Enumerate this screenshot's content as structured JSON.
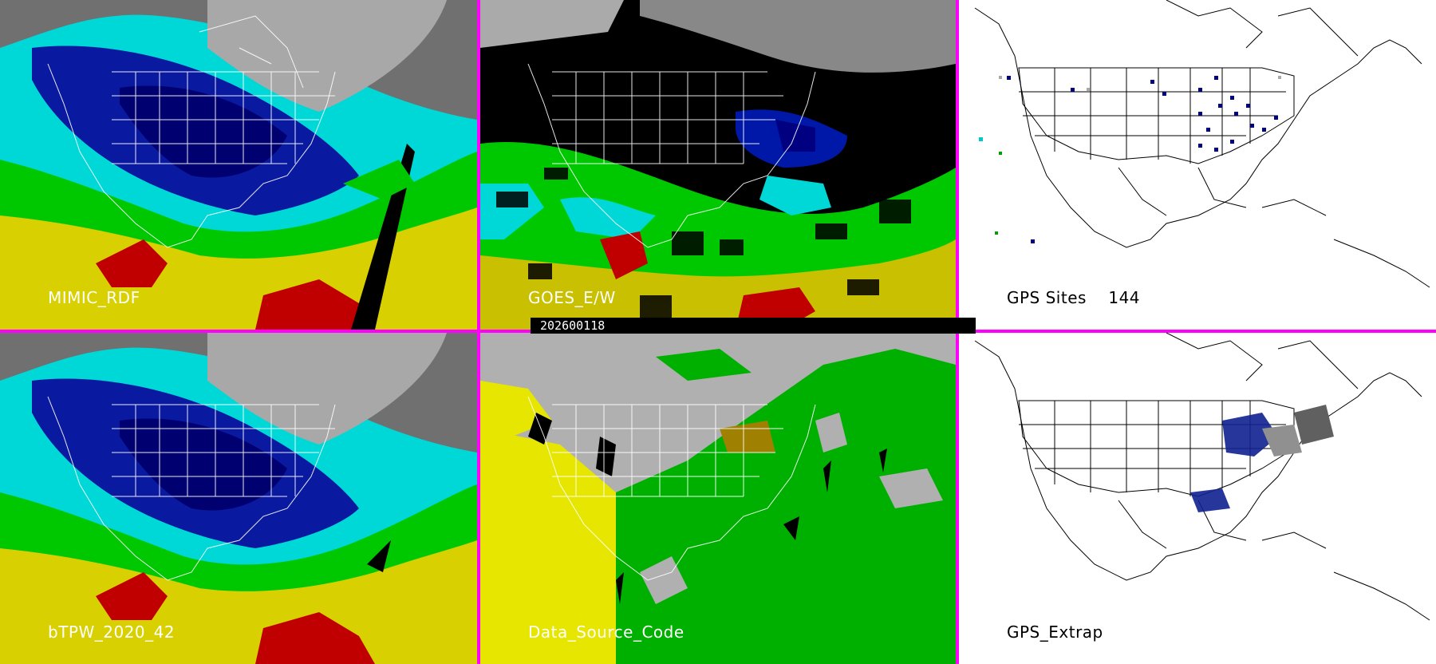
{
  "panels": {
    "p1": {
      "label": "MIMIC_RDF"
    },
    "p2": {
      "label": "GOES_E/W"
    },
    "p3": {
      "label": "GPS Sites    144"
    },
    "p4": {
      "label": "bTPW_2020_42"
    },
    "p5": {
      "label": "Data_Source_Code"
    },
    "p6": {
      "label": "GPS_Extrap"
    }
  },
  "timestamp": "202600118",
  "colors": {
    "divider": "#ff00ff",
    "moisture_low": "#000080",
    "moisture_mid": "#00e5e5",
    "moisture_green": "#00c000",
    "moisture_yellow": "#e5d800",
    "moisture_high": "#c00000",
    "source_yellow": "#e6e600",
    "source_green": "#00b000",
    "source_gray": "#b0b0b0"
  }
}
